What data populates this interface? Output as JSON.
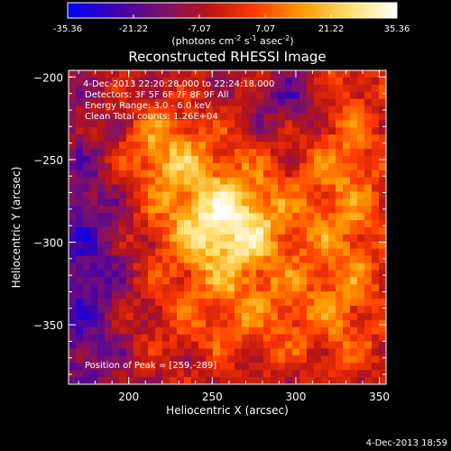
{
  "chart_data": {
    "type": "heatmap",
    "title": "Reconstructed RHESSI Image",
    "colorbar": {
      "label_main": "(photons cm",
      "label_sup1": "-2",
      "label_mid": " s",
      "label_sup2": "-1",
      "label_end": " asec",
      "label_sup3": "-2",
      "label_close": ")",
      "range": [
        -35.36,
        35.36
      ],
      "ticks": [
        "-35.36",
        "-21.22",
        "-7.07",
        "7.07",
        "21.22",
        "35.36"
      ],
      "colors": [
        "#0000ff",
        "#3d00b0",
        "#7a1070",
        "#b81414",
        "#ff3b00",
        "#ff9a00",
        "#ffe070",
        "#ffffff"
      ]
    },
    "xlabel": "Heliocentric X (arcsec)",
    "ylabel": "Heliocentric Y (arcsec)",
    "xlim": [
      164,
      354
    ],
    "ylim": [
      -386,
      -196
    ],
    "xticks": [
      200,
      250,
      300,
      350
    ],
    "yticks": [
      -200,
      -250,
      -300,
      -350
    ],
    "annotations": {
      "time_range": "4-Dec-2013 22:20:28.000 to 22:24:18.000",
      "detectors": "Detectors: 3F 5F 6F 7F 8F 9F All",
      "energy": "Energy Range: 3.0 - 6.0 keV",
      "method": "Clean    Total counts: 1.26E+04",
      "peak": "Position of Peak = [259,-289]"
    },
    "peak": {
      "x": 259,
      "y": -289
    },
    "grid": false
  },
  "footer": {
    "timestamp": "4-Dec-2013 18:59"
  }
}
